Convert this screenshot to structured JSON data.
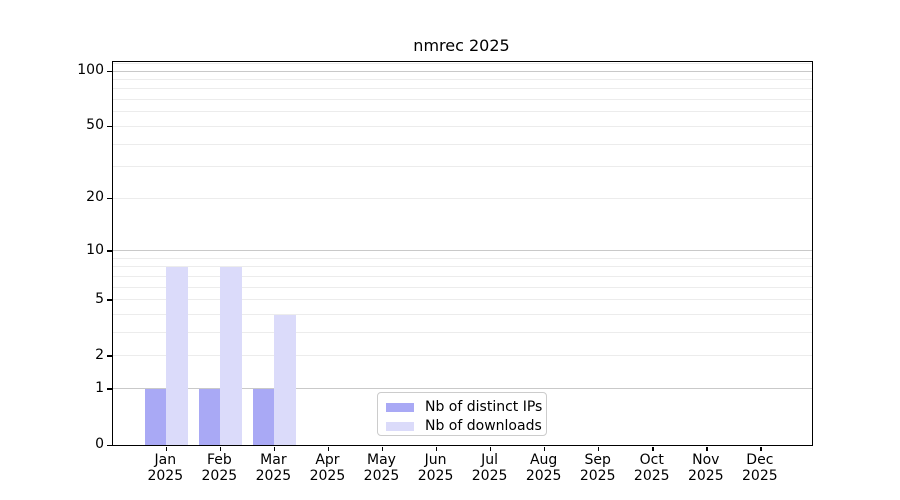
{
  "chart_data": {
    "type": "bar",
    "title": "nmrec 2025",
    "categories": [
      {
        "month": "Jan",
        "year": "2025"
      },
      {
        "month": "Feb",
        "year": "2025"
      },
      {
        "month": "Mar",
        "year": "2025"
      },
      {
        "month": "Apr",
        "year": "2025"
      },
      {
        "month": "May",
        "year": "2025"
      },
      {
        "month": "Jun",
        "year": "2025"
      },
      {
        "month": "Jul",
        "year": "2025"
      },
      {
        "month": "Aug",
        "year": "2025"
      },
      {
        "month": "Sep",
        "year": "2025"
      },
      {
        "month": "Oct",
        "year": "2025"
      },
      {
        "month": "Nov",
        "year": "2025"
      },
      {
        "month": "Dec",
        "year": "2025"
      }
    ],
    "series": [
      {
        "name": "Nb of distinct IPs",
        "color": "#a9a9f5",
        "values": [
          1,
          1,
          1,
          0,
          0,
          0,
          0,
          0,
          0,
          0,
          0,
          0
        ]
      },
      {
        "name": "Nb of downloads",
        "color": "#dbdbfa",
        "values": [
          8,
          8,
          4,
          0,
          0,
          0,
          0,
          0,
          0,
          0,
          0,
          0
        ]
      }
    ],
    "y_axis": {
      "scale": "log1p",
      "ylim": [
        0,
        112
      ],
      "labeled_ticks": [
        0,
        1,
        2,
        5,
        10,
        20,
        50,
        100
      ],
      "major_gridlines": [
        1,
        10,
        100
      ],
      "minor_gridlines": [
        2,
        3,
        4,
        5,
        6,
        7,
        8,
        9,
        20,
        30,
        40,
        50,
        60,
        70,
        80,
        90,
        110
      ]
    },
    "legend": {
      "position": "lower center"
    },
    "colors": {
      "major_grid": "#c9c9c9",
      "minor_grid": "#ececec",
      "axis": "#000000",
      "background": "#ffffff"
    },
    "grid": true
  }
}
